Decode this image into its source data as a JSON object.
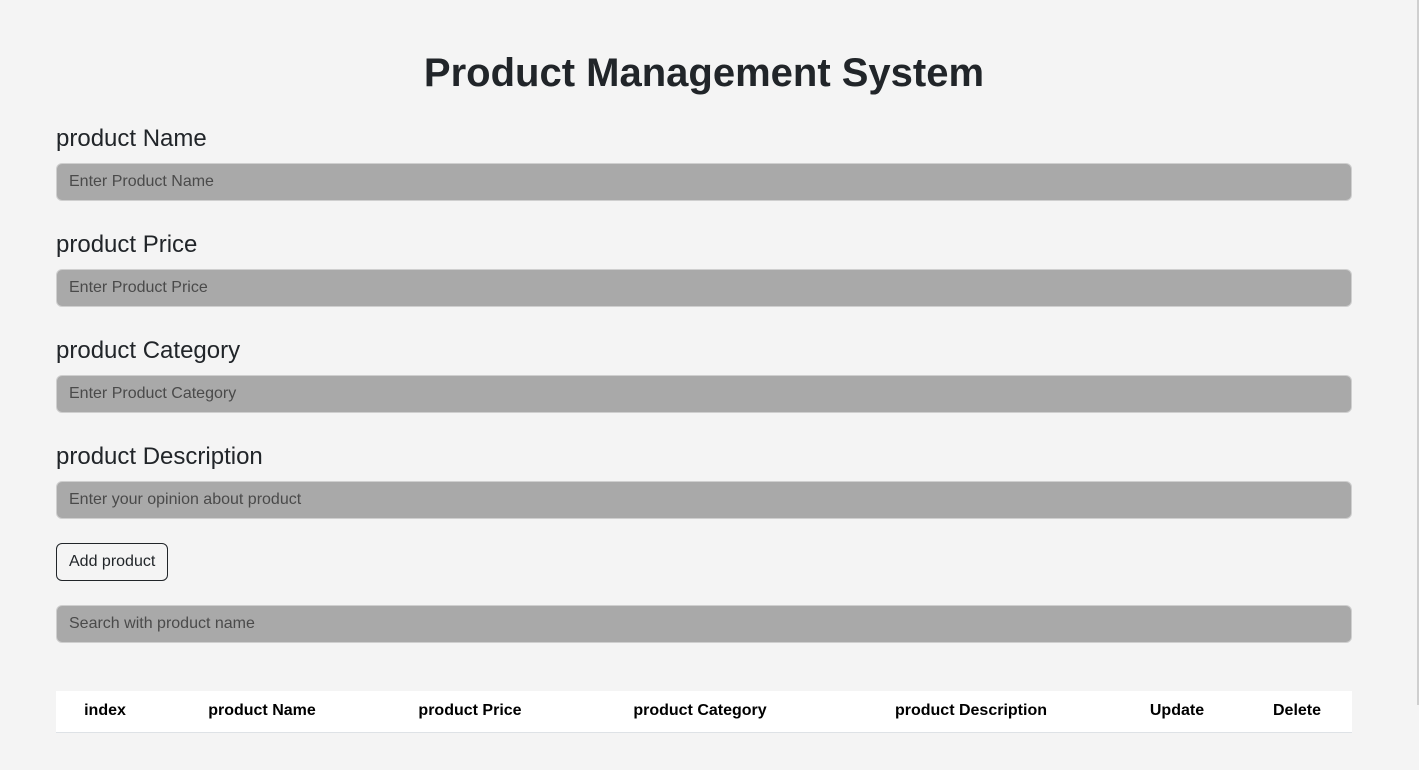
{
  "header": {
    "title": "Product Management System"
  },
  "form": {
    "fields": [
      {
        "label": "product Name",
        "placeholder": "Enter Product Name",
        "value": ""
      },
      {
        "label": "product Price",
        "placeholder": "Enter Product Price",
        "value": ""
      },
      {
        "label": "product Category",
        "placeholder": "Enter Product Category",
        "value": ""
      },
      {
        "label": "product Description",
        "placeholder": "Enter your opinion about product",
        "value": ""
      }
    ],
    "add_button_label": "Add product"
  },
  "search": {
    "placeholder": "Search with product name",
    "value": ""
  },
  "table": {
    "columns": [
      "index",
      "product Name",
      "product Price",
      "product Category",
      "product Description",
      "Update",
      "Delete"
    ],
    "rows": []
  },
  "colors": {
    "background": "#f4f4f4",
    "input_fill": "#a9a9a9",
    "text": "#212529"
  }
}
